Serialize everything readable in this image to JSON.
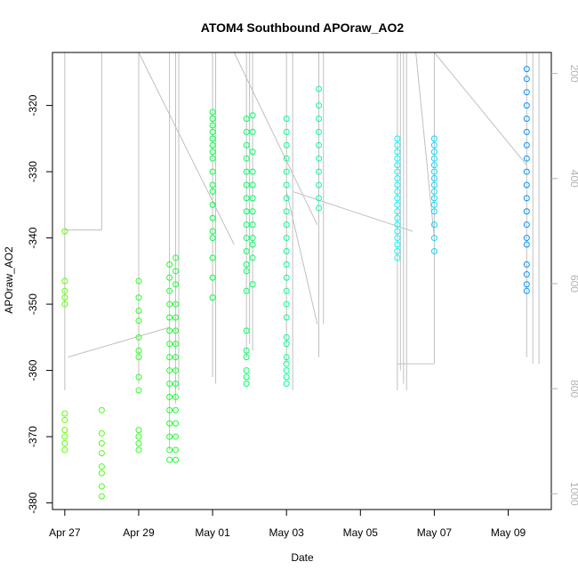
{
  "chart_data": {
    "type": "scatter",
    "title": "ATOM4 Southbound APOraw_AO2",
    "xlabel": "Date",
    "ylabel": "APOraw_AO2",
    "y2label": "",
    "x_ticks": [
      "Apr 27",
      "Apr 29",
      "May 01",
      "May 03",
      "May 05",
      "May 07",
      "May 09"
    ],
    "x_tick_dates": [
      "2016-04-27",
      "2016-04-29",
      "2016-05-01",
      "2016-05-03",
      "2016-05-05",
      "2016-05-07",
      "2016-05-09"
    ],
    "xlim": [
      "2016-04-26 16:00",
      "2016-05-10 04:00"
    ],
    "y_ticks": [
      -320,
      -330,
      -340,
      -350,
      -360,
      -370,
      -380
    ],
    "ylim": [
      -381,
      -312
    ],
    "y2_ticks": [
      200,
      400,
      600,
      800,
      1000
    ],
    "y2lim": [
      1030,
      160
    ],
    "y2_color": "#b3b3b3",
    "line_color": "#c0c0c0",
    "point_colors": [
      "#66ff00",
      "#00ff40",
      "#00ffff",
      "#0080ff"
    ],
    "point_groups": [
      {
        "x": "2016-04-27 00:00",
        "y": [
          -339,
          -346.5,
          -348,
          -349,
          -350,
          -366.5,
          -367.5,
          -369,
          -370,
          -371,
          -372
        ]
      },
      {
        "x": "2016-04-28 00:00",
        "y": [
          -366,
          -369.5,
          -371,
          -372.5,
          -374.5,
          -375.5,
          -377.5,
          -379
        ]
      },
      {
        "x": "2016-04-29 00:00",
        "y": [
          -346.5,
          -349,
          -351,
          -352.5,
          -355,
          -357,
          -358,
          -361,
          -363,
          -369,
          -370,
          -371,
          -372
        ]
      },
      {
        "x": "2016-04-29 20:00",
        "y": [
          -344,
          -346,
          -348,
          -350,
          -352,
          -354,
          -356,
          -358,
          -360,
          -362,
          -364,
          -366,
          -368,
          -370,
          -372,
          -373.5
        ]
      },
      {
        "x": "2016-04-30 00:00",
        "y": [
          -343,
          -345,
          -347,
          -350,
          -352,
          -354,
          -356,
          -358,
          -360,
          -362,
          -364,
          -366,
          -368,
          -370,
          -372,
          -373.5
        ]
      },
      {
        "x": "2016-05-01 00:00",
        "y": [
          -321,
          -322,
          -323,
          -324,
          -325,
          -326,
          -327,
          -328,
          -330,
          -332,
          -333,
          -335,
          -337,
          -339,
          -340,
          -343,
          -346,
          -349
        ]
      },
      {
        "x": "2016-05-01 22:00",
        "y": [
          -322,
          -324,
          -326,
          -328,
          -330,
          -332,
          -334,
          -336,
          -338,
          -340,
          -342,
          -344,
          -345,
          -348,
          -354,
          -357,
          -358,
          -360,
          -361,
          -362
        ]
      },
      {
        "x": "2016-05-02 02:00",
        "y": [
          -321.5,
          -324,
          -327,
          -330,
          -332,
          -334,
          -336,
          -338,
          -340,
          -341,
          -343,
          -347
        ]
      },
      {
        "x": "2016-05-03 00:00",
        "y": [
          -322,
          -324,
          -326,
          -328,
          -330,
          -332,
          -334,
          -336,
          -338,
          -340,
          -342,
          -344,
          -346,
          -348,
          -350,
          -352,
          -355,
          -356,
          -358,
          -359,
          -360,
          -361,
          -362
        ]
      },
      {
        "x": "2016-05-03 21:00",
        "y": [
          -317.5,
          -320,
          -322,
          -324,
          -326,
          -328,
          -330,
          -332,
          -334,
          -335.5
        ]
      },
      {
        "x": "2016-05-06 00:00",
        "y": [
          -325,
          -326,
          -327,
          -328,
          -329,
          -330,
          -331,
          -332,
          -333,
          -334,
          -335,
          -336,
          -337,
          -338,
          -339,
          -340,
          -341,
          -342,
          -343
        ]
      },
      {
        "x": "2016-05-07 00:00",
        "y": [
          -325,
          -326,
          -327,
          -328,
          -329,
          -330,
          -331,
          -332,
          -333,
          -334,
          -335,
          -336,
          -338,
          -340,
          -342
        ]
      },
      {
        "x": "2016-05-09 12:00",
        "y": [
          -314.5,
          -316,
          -318,
          -320,
          -322,
          -324,
          -326,
          -328,
          -330,
          -332,
          -334,
          -336,
          -338,
          -340,
          -341,
          -344,
          -345.5,
          -347,
          -348
        ]
      }
    ],
    "trace_segments": [
      {
        "x": "2016-04-27 00:00",
        "y": [
          -312,
          -363
        ]
      },
      {
        "x": "2016-04-27 00:00",
        "y": [
          -338.8,
          -338.8
        ],
        "x_end": "2016-04-28 00:00"
      },
      {
        "x": "2016-04-28 00:00",
        "y": [
          -312,
          -338.8
        ]
      },
      {
        "x": "2016-04-27 02:00",
        "y": [
          -358,
          -353.5
        ],
        "x_end": "2016-04-29 20:00"
      },
      {
        "x": "2016-04-29 00:00",
        "y": [
          -312,
          -362
        ]
      },
      {
        "x": "2016-04-29 20:00",
        "y": [
          -312,
          -372
        ]
      },
      {
        "x": "2016-04-30 00:00",
        "y": [
          -312,
          -365
        ]
      },
      {
        "x": "2016-04-30 02:00",
        "y": [
          -312,
          -363
        ]
      },
      {
        "x": "2016-04-29 00:00",
        "y": [
          -312,
          -341
        ],
        "x_end": "2016-05-01 14:00"
      },
      {
        "x": "2016-05-01 00:00",
        "y": [
          -312,
          -361
        ]
      },
      {
        "x": "2016-05-01 02:00",
        "y": [
          -312,
          -362
        ]
      },
      {
        "x": "2016-05-01 22:00",
        "y": [
          -312,
          -358
        ]
      },
      {
        "x": "2016-05-02 00:00",
        "y": [
          -312,
          -356
        ]
      },
      {
        "x": "2016-05-02 02:00",
        "y": [
          -312,
          -357
        ]
      },
      {
        "x": "2016-05-01 14:00",
        "y": [
          -312,
          -338
        ],
        "x_end": "2016-05-03 20:00"
      },
      {
        "x": "2016-05-03 00:00",
        "y": [
          -312,
          -359
        ]
      },
      {
        "x": "2016-05-03 04:00",
        "y": [
          -312,
          -363
        ]
      },
      {
        "x": "2016-05-03 00:00",
        "y": [
          -333,
          -353
        ],
        "x_end": "2016-05-03 20:00"
      },
      {
        "x": "2016-05-03 04:00",
        "y": [
          -333,
          -339
        ],
        "x_end": "2016-05-06 10:00"
      },
      {
        "x": "2016-05-03 21:00",
        "y": [
          -312,
          -358
        ]
      },
      {
        "x": "2016-05-04 00:00",
        "y": [
          -312,
          -353
        ]
      },
      {
        "x": "2016-05-06 00:00",
        "y": [
          -312,
          -363
        ]
      },
      {
        "x": "2016-05-06 02:00",
        "y": [
          -312,
          -360
        ]
      },
      {
        "x": "2016-05-06 04:00",
        "y": [
          -312,
          -362
        ]
      },
      {
        "x": "2016-05-06 06:00",
        "y": [
          -312,
          -363
        ]
      },
      {
        "x": "2016-05-06 00:00",
        "y": [
          -359,
          -359
        ],
        "x_end": "2016-05-07 00:00"
      },
      {
        "x": "2016-05-07 00:00",
        "y": [
          -312,
          -359
        ]
      },
      {
        "x": "2016-05-06 12:00",
        "y": [
          -312,
          -340
        ],
        "x_end": "2016-05-07 00:00"
      },
      {
        "x": "2016-05-07 00:00",
        "y": [
          -312,
          -329
        ],
        "x_end": "2016-05-09 12:00"
      },
      {
        "x": "2016-05-09 12:00",
        "y": [
          -312,
          -358
        ]
      },
      {
        "x": "2016-05-09 16:00",
        "y": [
          -312,
          -359
        ]
      },
      {
        "x": "2016-05-09 20:00",
        "y": [
          -312,
          -359
        ]
      }
    ]
  }
}
